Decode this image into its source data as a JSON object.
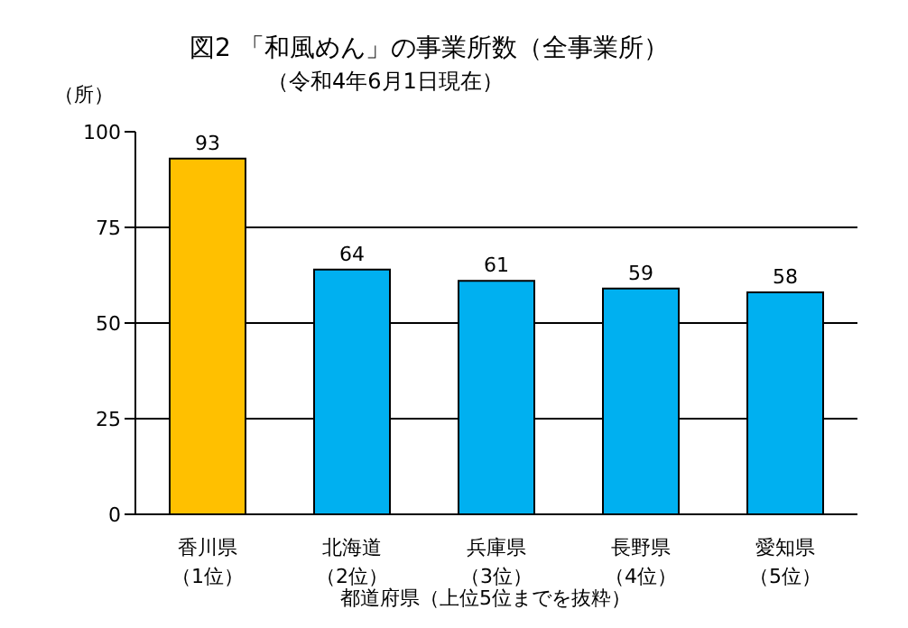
{
  "chart_data": {
    "type": "bar",
    "title": "図2 「和風めん」の事業所数（全事業所）",
    "subtitle": "（令和4年6月1日現在）",
    "ylabel": "（所）",
    "xlabel": "都道府県（上位5位までを抜粋）",
    "categories": [
      "香川県（1位）",
      "北海道（2位）",
      "兵庫県（3位）",
      "長野県（4位）",
      "愛知県（5位）"
    ],
    "values": [
      93,
      64,
      61,
      59,
      58
    ],
    "colors": [
      "#ffc000",
      "#00b0f0",
      "#00b0f0",
      "#00b0f0",
      "#00b0f0"
    ],
    "ylim": [
      0,
      100
    ],
    "yticks": [
      0,
      25,
      50,
      75,
      100
    ],
    "grid": "y",
    "data_labels": true
  }
}
